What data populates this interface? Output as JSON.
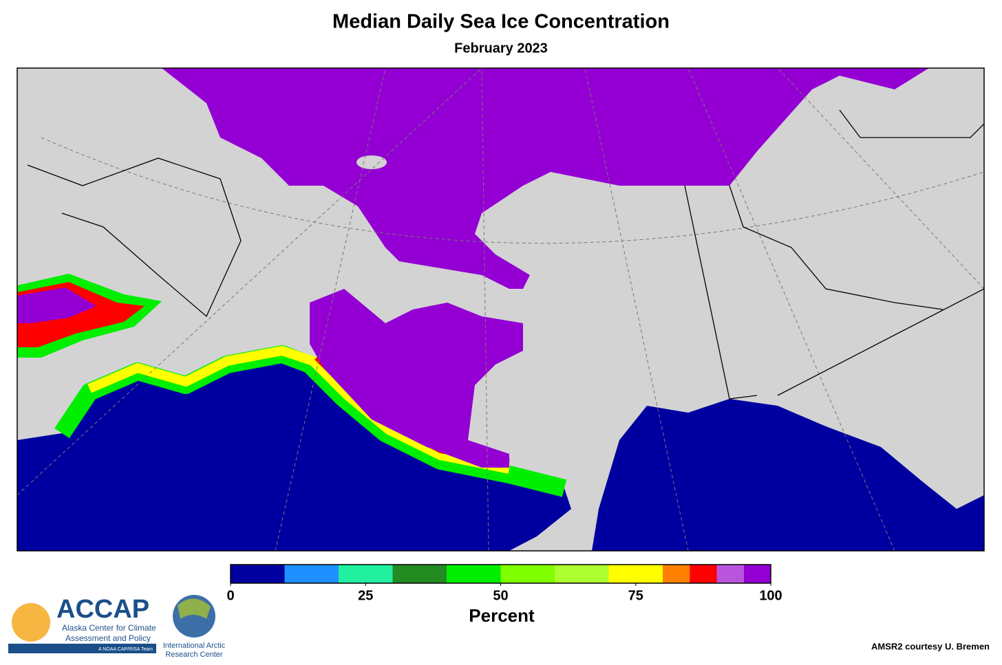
{
  "header": {
    "title": "Median Daily Sea Ice Concentration",
    "subtitle": "February 2023"
  },
  "colorbar": {
    "bounds": [
      0,
      10,
      20,
      30,
      40,
      50,
      60,
      70,
      80,
      85,
      90,
      95,
      100
    ],
    "colors": [
      "#0000a0",
      "#1e90ff",
      "#20f0a0",
      "#228b22",
      "#00ee00",
      "#7fff00",
      "#adff2f",
      "#ffff00",
      "#ff7f00",
      "#ff0000",
      "#b955dd",
      "#9400d3"
    ],
    "ticks": [
      0,
      25,
      50,
      75,
      100
    ],
    "label": "Percent"
  },
  "logos": {
    "accap": "ACCAP",
    "accap_line1": "Alaska Center for Climate",
    "accap_line2": "Assessment and Policy",
    "accap_tag": "A NOAA CAP/RISA Team",
    "iarc_line1": "International Arctic",
    "iarc_line2": "Research Center"
  },
  "credit": "AMSR2 courtesy U. Bremen"
}
